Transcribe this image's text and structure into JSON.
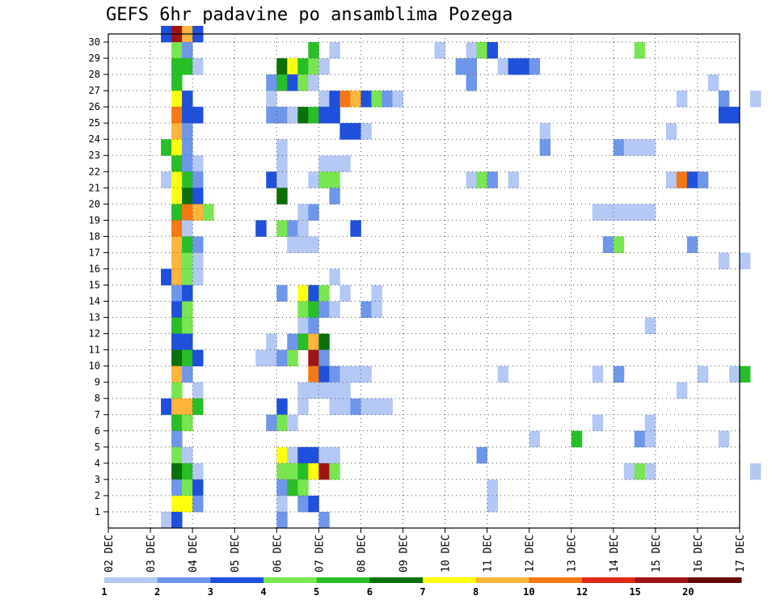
{
  "chart_data": {
    "type": "heatmap",
    "title": "GEFS 6hr padavine po ansamblima Pozega",
    "x_tick_labels": [
      "02 DEC",
      "03 DEC",
      "04 DEC",
      "05 DEC",
      "06 DEC",
      "07 DEC",
      "08 DEC",
      "09 DEC",
      "10 DEC",
      "11 DEC",
      "12 DEC",
      "13 DEC",
      "14 DEC",
      "15 DEC",
      "16 DEC",
      "17 DEC"
    ],
    "y_tick_labels": [
      "1",
      "2",
      "3",
      "4",
      "5",
      "6",
      "7",
      "8",
      "9",
      "10",
      "11",
      "12",
      "13",
      "14",
      "15",
      "16",
      "17",
      "18",
      "19",
      "20",
      "21",
      "22",
      "23",
      "24",
      "25",
      "26",
      "27",
      "28",
      "29",
      "30"
    ],
    "x_range_days": [
      2,
      17
    ],
    "step_hours": 6,
    "y_range": [
      0,
      30
    ],
    "grid": true,
    "colorbar": {
      "labels": [
        "1",
        "2",
        "3",
        "4",
        "5",
        "6",
        "7",
        "8",
        "10",
        "12",
        "15",
        "20"
      ],
      "colors": [
        "#b4c8f5",
        "#6e96eb",
        "#1e50dc",
        "#78e650",
        "#28be28",
        "#0a700a",
        "#ffff10",
        "#ffb43c",
        "#f57814",
        "#dc2814",
        "#a01414",
        "#640a0a"
      ]
    },
    "cells": [
      {
        "t": 5,
        "y": 30,
        "v": 3
      },
      {
        "t": 6,
        "y": 30,
        "v": 15
      },
      {
        "t": 7,
        "y": 30,
        "v": 8
      },
      {
        "t": 8,
        "y": 30,
        "v": 3
      },
      {
        "t": 6,
        "y": 29,
        "v": 4
      },
      {
        "t": 7,
        "y": 29,
        "v": 2
      },
      {
        "t": 19,
        "y": 29,
        "v": 5
      },
      {
        "t": 21,
        "y": 29,
        "v": 1
      },
      {
        "t": 31,
        "y": 29,
        "v": 1
      },
      {
        "t": 34,
        "y": 29,
        "v": 1
      },
      {
        "t": 35,
        "y": 29,
        "v": 4
      },
      {
        "t": 36,
        "y": 29,
        "v": 3
      },
      {
        "t": 50,
        "y": 29,
        "v": 4
      },
      {
        "t": 6,
        "y": 28,
        "v": 5
      },
      {
        "t": 7,
        "y": 28,
        "v": 5
      },
      {
        "t": 8,
        "y": 28,
        "v": 1
      },
      {
        "t": 16,
        "y": 28,
        "v": 6
      },
      {
        "t": 17,
        "y": 28,
        "v": 7
      },
      {
        "t": 18,
        "y": 28,
        "v": 5
      },
      {
        "t": 19,
        "y": 28,
        "v": 4
      },
      {
        "t": 20,
        "y": 28,
        "v": 1
      },
      {
        "t": 33,
        "y": 28,
        "v": 2
      },
      {
        "t": 34,
        "y": 28,
        "v": 2
      },
      {
        "t": 37,
        "y": 28,
        "v": 1
      },
      {
        "t": 38,
        "y": 28,
        "v": 3
      },
      {
        "t": 39,
        "y": 28,
        "v": 3
      },
      {
        "t": 40,
        "y": 28,
        "v": 2
      },
      {
        "t": 6,
        "y": 27,
        "v": 5
      },
      {
        "t": 15,
        "y": 27,
        "v": 2
      },
      {
        "t": 16,
        "y": 27,
        "v": 5
      },
      {
        "t": 17,
        "y": 27,
        "v": 3
      },
      {
        "t": 18,
        "y": 27,
        "v": 4
      },
      {
        "t": 19,
        "y": 27,
        "v": 1
      },
      {
        "t": 34,
        "y": 27,
        "v": 2
      },
      {
        "t": 57,
        "y": 27,
        "v": 1
      },
      {
        "t": 6,
        "y": 26,
        "v": 7
      },
      {
        "t": 7,
        "y": 26,
        "v": 3
      },
      {
        "t": 15,
        "y": 26,
        "v": 1
      },
      {
        "t": 20,
        "y": 26,
        "v": 1
      },
      {
        "t": 21,
        "y": 26,
        "v": 3
      },
      {
        "t": 22,
        "y": 26,
        "v": 10
      },
      {
        "t": 23,
        "y": 26,
        "v": 8
      },
      {
        "t": 24,
        "y": 26,
        "v": 3
      },
      {
        "t": 25,
        "y": 26,
        "v": 4
      },
      {
        "t": 26,
        "y": 26,
        "v": 2
      },
      {
        "t": 27,
        "y": 26,
        "v": 1
      },
      {
        "t": 54,
        "y": 26,
        "v": 1
      },
      {
        "t": 58,
        "y": 26,
        "v": 2
      },
      {
        "t": 61,
        "y": 26,
        "v": 1
      },
      {
        "t": 6,
        "y": 25,
        "v": 10
      },
      {
        "t": 7,
        "y": 25,
        "v": 3
      },
      {
        "t": 8,
        "y": 25,
        "v": 3
      },
      {
        "t": 15,
        "y": 25,
        "v": 2
      },
      {
        "t": 16,
        "y": 25,
        "v": 2
      },
      {
        "t": 17,
        "y": 25,
        "v": 1
      },
      {
        "t": 18,
        "y": 25,
        "v": 6
      },
      {
        "t": 19,
        "y": 25,
        "v": 5
      },
      {
        "t": 20,
        "y": 25,
        "v": 3
      },
      {
        "t": 21,
        "y": 25,
        "v": 3
      },
      {
        "t": 58,
        "y": 25,
        "v": 3
      },
      {
        "t": 59,
        "y": 25,
        "v": 3
      },
      {
        "t": 6,
        "y": 24,
        "v": 8
      },
      {
        "t": 7,
        "y": 24,
        "v": 2
      },
      {
        "t": 22,
        "y": 24,
        "v": 3
      },
      {
        "t": 23,
        "y": 24,
        "v": 3
      },
      {
        "t": 24,
        "y": 24,
        "v": 1
      },
      {
        "t": 41,
        "y": 24,
        "v": 1
      },
      {
        "t": 53,
        "y": 24,
        "v": 1
      },
      {
        "t": 5,
        "y": 23,
        "v": 5
      },
      {
        "t": 6,
        "y": 23,
        "v": 7
      },
      {
        "t": 7,
        "y": 23,
        "v": 2
      },
      {
        "t": 16,
        "y": 23,
        "v": 1
      },
      {
        "t": 41,
        "y": 23,
        "v": 2
      },
      {
        "t": 48,
        "y": 23,
        "v": 2
      },
      {
        "t": 49,
        "y": 23,
        "v": 1
      },
      {
        "t": 50,
        "y": 23,
        "v": 1
      },
      {
        "t": 51,
        "y": 23,
        "v": 1
      },
      {
        "t": 6,
        "y": 22,
        "v": 5
      },
      {
        "t": 7,
        "y": 22,
        "v": 2
      },
      {
        "t": 8,
        "y": 22,
        "v": 1
      },
      {
        "t": 16,
        "y": 22,
        "v": 1
      },
      {
        "t": 20,
        "y": 22,
        "v": 1
      },
      {
        "t": 21,
        "y": 22,
        "v": 1
      },
      {
        "t": 22,
        "y": 22,
        "v": 1
      },
      {
        "t": 5,
        "y": 21,
        "v": 1
      },
      {
        "t": 6,
        "y": 21,
        "v": 7
      },
      {
        "t": 7,
        "y": 21,
        "v": 5
      },
      {
        "t": 8,
        "y": 21,
        "v": 2
      },
      {
        "t": 15,
        "y": 21,
        "v": 3
      },
      {
        "t": 16,
        "y": 21,
        "v": 1
      },
      {
        "t": 19,
        "y": 21,
        "v": 1
      },
      {
        "t": 20,
        "y": 21,
        "v": 4
      },
      {
        "t": 21,
        "y": 21,
        "v": 4
      },
      {
        "t": 34,
        "y": 21,
        "v": 1
      },
      {
        "t": 35,
        "y": 21,
        "v": 4
      },
      {
        "t": 36,
        "y": 21,
        "v": 2
      },
      {
        "t": 38,
        "y": 21,
        "v": 1
      },
      {
        "t": 53,
        "y": 21,
        "v": 1
      },
      {
        "t": 54,
        "y": 21,
        "v": 10
      },
      {
        "t": 55,
        "y": 21,
        "v": 3
      },
      {
        "t": 56,
        "y": 21,
        "v": 2
      },
      {
        "t": 6,
        "y": 20,
        "v": 7
      },
      {
        "t": 7,
        "y": 20,
        "v": 6
      },
      {
        "t": 8,
        "y": 20,
        "v": 3
      },
      {
        "t": 16,
        "y": 20,
        "v": 6
      },
      {
        "t": 21,
        "y": 20,
        "v": 2
      },
      {
        "t": 6,
        "y": 19,
        "v": 5
      },
      {
        "t": 7,
        "y": 19,
        "v": 10
      },
      {
        "t": 8,
        "y": 19,
        "v": 8
      },
      {
        "t": 9,
        "y": 19,
        "v": 4
      },
      {
        "t": 18,
        "y": 19,
        "v": 1
      },
      {
        "t": 19,
        "y": 19,
        "v": 2
      },
      {
        "t": 46,
        "y": 19,
        "v": 1
      },
      {
        "t": 47,
        "y": 19,
        "v": 1
      },
      {
        "t": 48,
        "y": 19,
        "v": 1
      },
      {
        "t": 49,
        "y": 19,
        "v": 1
      },
      {
        "t": 50,
        "y": 19,
        "v": 1
      },
      {
        "t": 51,
        "y": 19,
        "v": 1
      },
      {
        "t": 6,
        "y": 18,
        "v": 10
      },
      {
        "t": 7,
        "y": 18,
        "v": 1
      },
      {
        "t": 14,
        "y": 18,
        "v": 3
      },
      {
        "t": 16,
        "y": 18,
        "v": 4
      },
      {
        "t": 17,
        "y": 18,
        "v": 2
      },
      {
        "t": 18,
        "y": 18,
        "v": 1
      },
      {
        "t": 23,
        "y": 18,
        "v": 3
      },
      {
        "t": 6,
        "y": 17,
        "v": 8
      },
      {
        "t": 7,
        "y": 17,
        "v": 5
      },
      {
        "t": 8,
        "y": 17,
        "v": 2
      },
      {
        "t": 17,
        "y": 17,
        "v": 1
      },
      {
        "t": 18,
        "y": 17,
        "v": 1
      },
      {
        "t": 19,
        "y": 17,
        "v": 1
      },
      {
        "t": 47,
        "y": 17,
        "v": 2
      },
      {
        "t": 48,
        "y": 17,
        "v": 4
      },
      {
        "t": 55,
        "y": 17,
        "v": 2
      },
      {
        "t": 6,
        "y": 16,
        "v": 8
      },
      {
        "t": 7,
        "y": 16,
        "v": 4
      },
      {
        "t": 8,
        "y": 16,
        "v": 1
      },
      {
        "t": 58,
        "y": 16,
        "v": 1
      },
      {
        "t": 60,
        "y": 16,
        "v": 1
      },
      {
        "t": 5,
        "y": 15,
        "v": 3
      },
      {
        "t": 6,
        "y": 15,
        "v": 8
      },
      {
        "t": 7,
        "y": 15,
        "v": 4
      },
      {
        "t": 8,
        "y": 15,
        "v": 1
      },
      {
        "t": 21,
        "y": 15,
        "v": 1
      },
      {
        "t": 6,
        "y": 14,
        "v": 2
      },
      {
        "t": 7,
        "y": 14,
        "v": 3
      },
      {
        "t": 16,
        "y": 14,
        "v": 2
      },
      {
        "t": 18,
        "y": 14,
        "v": 7
      },
      {
        "t": 19,
        "y": 14,
        "v": 3
      },
      {
        "t": 20,
        "y": 14,
        "v": 4
      },
      {
        "t": 22,
        "y": 14,
        "v": 1
      },
      {
        "t": 25,
        "y": 14,
        "v": 1
      },
      {
        "t": 6,
        "y": 13,
        "v": 3
      },
      {
        "t": 7,
        "y": 13,
        "v": 4
      },
      {
        "t": 18,
        "y": 13,
        "v": 4
      },
      {
        "t": 19,
        "y": 13,
        "v": 5
      },
      {
        "t": 20,
        "y": 13,
        "v": 2
      },
      {
        "t": 21,
        "y": 13,
        "v": 1
      },
      {
        "t": 24,
        "y": 13,
        "v": 2
      },
      {
        "t": 25,
        "y": 13,
        "v": 1
      },
      {
        "t": 6,
        "y": 12,
        "v": 5
      },
      {
        "t": 7,
        "y": 12,
        "v": 4
      },
      {
        "t": 18,
        "y": 12,
        "v": 1
      },
      {
        "t": 19,
        "y": 12,
        "v": 2
      },
      {
        "t": 51,
        "y": 12,
        "v": 1
      },
      {
        "t": 6,
        "y": 11,
        "v": 3
      },
      {
        "t": 7,
        "y": 11,
        "v": 3
      },
      {
        "t": 15,
        "y": 11,
        "v": 1
      },
      {
        "t": 17,
        "y": 11,
        "v": 2
      },
      {
        "t": 18,
        "y": 11,
        "v": 5
      },
      {
        "t": 19,
        "y": 11,
        "v": 8
      },
      {
        "t": 20,
        "y": 11,
        "v": 6
      },
      {
        "t": 6,
        "y": 10,
        "v": 6
      },
      {
        "t": 7,
        "y": 10,
        "v": 5
      },
      {
        "t": 8,
        "y": 10,
        "v": 3
      },
      {
        "t": 14,
        "y": 10,
        "v": 1
      },
      {
        "t": 15,
        "y": 10,
        "v": 1
      },
      {
        "t": 16,
        "y": 10,
        "v": 2
      },
      {
        "t": 17,
        "y": 10,
        "v": 4
      },
      {
        "t": 19,
        "y": 10,
        "v": 15
      },
      {
        "t": 20,
        "y": 10,
        "v": 2
      },
      {
        "t": 6,
        "y": 9,
        "v": 8
      },
      {
        "t": 7,
        "y": 9,
        "v": 2
      },
      {
        "t": 19,
        "y": 9,
        "v": 10
      },
      {
        "t": 20,
        "y": 9,
        "v": 3
      },
      {
        "t": 21,
        "y": 9,
        "v": 2
      },
      {
        "t": 22,
        "y": 9,
        "v": 1
      },
      {
        "t": 23,
        "y": 9,
        "v": 1
      },
      {
        "t": 24,
        "y": 9,
        "v": 1
      },
      {
        "t": 37,
        "y": 9,
        "v": 1
      },
      {
        "t": 46,
        "y": 9,
        "v": 1
      },
      {
        "t": 48,
        "y": 9,
        "v": 2
      },
      {
        "t": 56,
        "y": 9,
        "v": 1
      },
      {
        "t": 59,
        "y": 9,
        "v": 1
      },
      {
        "t": 60,
        "y": 9,
        "v": 5
      },
      {
        "t": 6,
        "y": 8,
        "v": 4
      },
      {
        "t": 8,
        "y": 8,
        "v": 1
      },
      {
        "t": 18,
        "y": 8,
        "v": 1
      },
      {
        "t": 19,
        "y": 8,
        "v": 1
      },
      {
        "t": 20,
        "y": 8,
        "v": 1
      },
      {
        "t": 21,
        "y": 8,
        "v": 1
      },
      {
        "t": 22,
        "y": 8,
        "v": 1
      },
      {
        "t": 54,
        "y": 8,
        "v": 1
      },
      {
        "t": 5,
        "y": 7,
        "v": 3
      },
      {
        "t": 6,
        "y": 7,
        "v": 8
      },
      {
        "t": 7,
        "y": 7,
        "v": 8
      },
      {
        "t": 8,
        "y": 7,
        "v": 5
      },
      {
        "t": 16,
        "y": 7,
        "v": 3
      },
      {
        "t": 18,
        "y": 7,
        "v": 1
      },
      {
        "t": 21,
        "y": 7,
        "v": 1
      },
      {
        "t": 22,
        "y": 7,
        "v": 1
      },
      {
        "t": 23,
        "y": 7,
        "v": 2
      },
      {
        "t": 24,
        "y": 7,
        "v": 1
      },
      {
        "t": 25,
        "y": 7,
        "v": 1
      },
      {
        "t": 26,
        "y": 7,
        "v": 1
      },
      {
        "t": 6,
        "y": 6,
        "v": 5
      },
      {
        "t": 7,
        "y": 6,
        "v": 4
      },
      {
        "t": 15,
        "y": 6,
        "v": 2
      },
      {
        "t": 16,
        "y": 6,
        "v": 4
      },
      {
        "t": 17,
        "y": 6,
        "v": 1
      },
      {
        "t": 46,
        "y": 6,
        "v": 1
      },
      {
        "t": 51,
        "y": 6,
        "v": 1
      },
      {
        "t": 6,
        "y": 5,
        "v": 2
      },
      {
        "t": 40,
        "y": 5,
        "v": 1
      },
      {
        "t": 44,
        "y": 5,
        "v": 5
      },
      {
        "t": 50,
        "y": 5,
        "v": 2
      },
      {
        "t": 51,
        "y": 5,
        "v": 1
      },
      {
        "t": 58,
        "y": 5,
        "v": 1
      },
      {
        "t": 6,
        "y": 4,
        "v": 4
      },
      {
        "t": 7,
        "y": 4,
        "v": 1
      },
      {
        "t": 16,
        "y": 4,
        "v": 7
      },
      {
        "t": 17,
        "y": 4,
        "v": 1
      },
      {
        "t": 18,
        "y": 4,
        "v": 3
      },
      {
        "t": 19,
        "y": 4,
        "v": 3
      },
      {
        "t": 20,
        "y": 4,
        "v": 1
      },
      {
        "t": 21,
        "y": 4,
        "v": 1
      },
      {
        "t": 35,
        "y": 4,
        "v": 2
      },
      {
        "t": 6,
        "y": 3,
        "v": 6
      },
      {
        "t": 7,
        "y": 3,
        "v": 5
      },
      {
        "t": 8,
        "y": 3,
        "v": 1
      },
      {
        "t": 16,
        "y": 3,
        "v": 4
      },
      {
        "t": 17,
        "y": 3,
        "v": 4
      },
      {
        "t": 18,
        "y": 3,
        "v": 5
      },
      {
        "t": 19,
        "y": 3,
        "v": 7
      },
      {
        "t": 20,
        "y": 3,
        "v": 15
      },
      {
        "t": 21,
        "y": 3,
        "v": 4
      },
      {
        "t": 49,
        "y": 3,
        "v": 1
      },
      {
        "t": 50,
        "y": 3,
        "v": 4
      },
      {
        "t": 51,
        "y": 3,
        "v": 1
      },
      {
        "t": 61,
        "y": 3,
        "v": 1
      },
      {
        "t": 6,
        "y": 2,
        "v": 2
      },
      {
        "t": 7,
        "y": 2,
        "v": 4
      },
      {
        "t": 8,
        "y": 2,
        "v": 3
      },
      {
        "t": 16,
        "y": 2,
        "v": 2
      },
      {
        "t": 17,
        "y": 2,
        "v": 5
      },
      {
        "t": 18,
        "y": 2,
        "v": 4
      },
      {
        "t": 36,
        "y": 2,
        "v": 1
      },
      {
        "t": 6,
        "y": 1,
        "v": 7
      },
      {
        "t": 7,
        "y": 1,
        "v": 7
      },
      {
        "t": 8,
        "y": 1,
        "v": 2
      },
      {
        "t": 16,
        "y": 1,
        "v": 1
      },
      {
        "t": 18,
        "y": 1,
        "v": 2
      },
      {
        "t": 19,
        "y": 1,
        "v": 3
      },
      {
        "t": 36,
        "y": 1,
        "v": 1
      },
      {
        "t": 5,
        "y": 0,
        "v": 1
      },
      {
        "t": 6,
        "y": 0,
        "v": 3
      },
      {
        "t": 16,
        "y": 0,
        "v": 2
      },
      {
        "t": 20,
        "y": 0,
        "v": 2
      }
    ]
  }
}
